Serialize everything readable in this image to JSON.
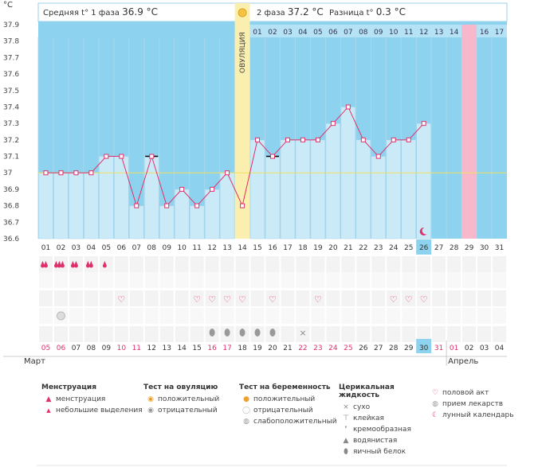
{
  "header": {
    "unit": "°C",
    "phase1_label": "Средняя t° 1 фаза",
    "phase1_value": "36.9 °C",
    "phase2_label": "2 фаза",
    "phase2_value": "37.2 °C",
    "diff_label": "Разница t°",
    "diff_value": "0.3 °C",
    "ovulation_label": "ОВУЛЯЦИЯ"
  },
  "chart_data": {
    "type": "line",
    "ylim": [
      36.6,
      37.9
    ],
    "yticks": [
      "37.9",
      "37.8",
      "37.7",
      "37.6",
      "37.5",
      "37.4",
      "37.3",
      "37.2",
      "37.1",
      "37",
      "36.9",
      "36.8",
      "36.7",
      "36.6"
    ],
    "baseline": 37.0,
    "cycle_days": [
      "01",
      "02",
      "03",
      "04",
      "05",
      "06",
      "07",
      "08",
      "09",
      "10",
      "11",
      "12",
      "13",
      "14",
      "15",
      "16",
      "17",
      "18",
      "19",
      "20",
      "21",
      "22",
      "23",
      "24",
      "25",
      "26",
      "27",
      "28",
      "29",
      "30",
      "31"
    ],
    "phase2_days": [
      "01",
      "02",
      "03",
      "04",
      "05",
      "06",
      "07",
      "08",
      "09",
      "10",
      "11",
      "12",
      "13",
      "14",
      "15",
      "16",
      "17"
    ],
    "temperatures": [
      37.0,
      37.0,
      37.0,
      37.0,
      37.1,
      37.1,
      36.8,
      37.1,
      36.8,
      36.9,
      36.8,
      36.9,
      37.0,
      36.8,
      37.2,
      37.1,
      37.2,
      37.2,
      37.2,
      37.3,
      37.4,
      37.2,
      37.1,
      37.2,
      37.2,
      37.3
    ],
    "excluded_days": [
      8,
      16
    ],
    "ovulation_day": 14,
    "today_day": 26,
    "expected_period_day": 29,
    "moon_day": 26,
    "dates": [
      "05",
      "06",
      "07",
      "08",
      "09",
      "10",
      "11",
      "12",
      "13",
      "14",
      "15",
      "16",
      "17",
      "18",
      "19",
      "20",
      "21",
      "22",
      "23",
      "24",
      "25",
      "26",
      "27",
      "28",
      "29",
      "30",
      "31",
      "01",
      "02",
      "03",
      "04"
    ],
    "weekend_dates": [
      5,
      6,
      10,
      11,
      16,
      17,
      22,
      23,
      24,
      25
    ],
    "month_start": "Март",
    "month_next": "Апрель",
    "menstruation": [
      2,
      3,
      2,
      2,
      1
    ],
    "sex_days": [
      6,
      11,
      12,
      13,
      14,
      16,
      19,
      24,
      25,
      26
    ],
    "ovulation_negative_days": [
      2
    ],
    "mucus_days": [
      12,
      13,
      14,
      15,
      16
    ],
    "dry_days": [
      18
    ]
  },
  "legend": {
    "menstruation": {
      "title": "Менструация",
      "items": [
        "менструация",
        "небольшие выделения"
      ]
    },
    "ovulation_test": {
      "title": "Тест на овуляцию",
      "items": [
        "положительный",
        "отрицательный"
      ]
    },
    "pregnancy_test": {
      "title": "Тест на беременность",
      "items": [
        "положительный",
        "отрицательный",
        "слабоположительный"
      ]
    },
    "cervical": {
      "title": "Церикальная жидкость",
      "items": [
        "сухо",
        "клейкая",
        "кремообразная",
        "водянистая",
        "яичный белок"
      ]
    },
    "other": {
      "items": [
        "половой акт",
        "прием лекарств",
        "лунный календарь"
      ]
    }
  },
  "colors": {
    "plot_bg": "#8dd2ee",
    "bar": "#cbeaf8",
    "bar_edge": "#9bd0ea",
    "ovulation": "#fbefb0",
    "period": "#f8b8cc",
    "line": "#e0306a",
    "baseline": "#f0e060",
    "header_bg": "#ffffff",
    "today": "#8dd2ee",
    "weekend": "#e0306a",
    "sex": "#e0306a"
  }
}
